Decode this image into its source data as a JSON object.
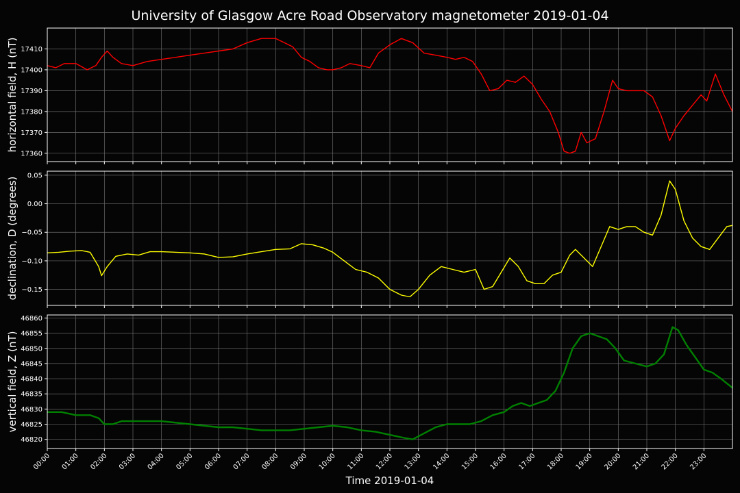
{
  "figure": {
    "title": "University of Glasgow Acre Road Observatory magnetometer 2019-01-04",
    "xlabel": "Time 2019-01-04",
    "background": "#050505",
    "grid_color": "#6b6b6b"
  },
  "chart_data": [
    {
      "type": "line",
      "ylabel": "horizontal field, H (nT)",
      "ylim": [
        17356,
        17420
      ],
      "yticks": [
        "17360",
        "17370",
        "17380",
        "17390",
        "17400",
        "17410"
      ],
      "xlim": [
        0,
        24
      ],
      "xticks": [
        "00:00",
        "01:00",
        "02:00",
        "03:00",
        "04:00",
        "05:00",
        "06:00",
        "07:00",
        "08:00",
        "09:00",
        "10:00",
        "11:00",
        "12:00",
        "13:00",
        "14:00",
        "15:00",
        "16:00",
        "17:00",
        "18:00",
        "19:00",
        "20:00",
        "21:00",
        "22:00",
        "23:00"
      ],
      "grid": true,
      "series": [
        {
          "color": "#ff0000",
          "x": [
            0,
            0.3,
            0.6,
            1.0,
            1.4,
            1.7,
            1.9,
            2.1,
            2.3,
            2.6,
            3.0,
            3.5,
            4.0,
            4.5,
            5.0,
            5.5,
            6.0,
            6.5,
            7.0,
            7.5,
            8.0,
            8.3,
            8.6,
            8.9,
            9.2,
            9.5,
            9.8,
            10.0,
            10.3,
            10.6,
            11.0,
            11.3,
            11.6,
            12.0,
            12.4,
            12.6,
            12.8,
            13.2,
            13.6,
            14.0,
            14.3,
            14.6,
            14.9,
            15.2,
            15.5,
            15.8,
            16.1,
            16.4,
            16.7,
            17.0,
            17.3,
            17.6,
            17.9,
            18.1,
            18.3,
            18.5,
            18.7,
            18.9,
            19.2,
            19.5,
            19.8,
            20.0,
            20.3,
            20.6,
            20.9,
            21.2,
            21.5,
            21.8,
            22.0,
            22.3,
            22.6,
            22.9,
            23.1,
            23.4,
            23.7,
            24.0
          ],
          "y": [
            17402,
            17401,
            17403,
            17403,
            17400,
            17402,
            17406,
            17409,
            17406,
            17403,
            17402,
            17404,
            17405,
            17406,
            17407,
            17408,
            17409,
            17410,
            17413,
            17415,
            17415,
            17413,
            17411,
            17406,
            17404,
            17401,
            17400,
            17400,
            17401,
            17403,
            17402,
            17401,
            17408,
            17412,
            17415,
            17414,
            17413,
            17408,
            17407,
            17406,
            17405,
            17406,
            17404,
            17398,
            17390,
            17391,
            17395,
            17394,
            17397,
            17393,
            17386,
            17380,
            17370,
            17361,
            17360,
            17361,
            17370,
            17365,
            17367,
            17380,
            17395,
            17391,
            17390,
            17390,
            17390,
            17387,
            17378,
            17366,
            17372,
            17378,
            17383,
            17388,
            17385,
            17398,
            17388,
            17380
          ]
        }
      ]
    },
    {
      "type": "line",
      "ylabel": "declination, D (degrees)",
      "ylim": [
        -0.178,
        0.057
      ],
      "yticks": [
        "0.05",
        "0.00",
        "−0.05",
        "−0.10",
        "−0.15"
      ],
      "xlim": [
        0,
        24
      ],
      "grid": true,
      "series": [
        {
          "color": "#ffff00",
          "x": [
            0,
            0.4,
            0.8,
            1.2,
            1.5,
            1.8,
            1.9,
            2.1,
            2.4,
            2.8,
            3.2,
            3.6,
            4.0,
            4.5,
            5.0,
            5.5,
            6.0,
            6.5,
            7.0,
            7.5,
            8.0,
            8.5,
            8.9,
            9.3,
            9.7,
            10.0,
            10.4,
            10.8,
            11.2,
            11.6,
            12.0,
            12.4,
            12.7,
            13.0,
            13.4,
            13.8,
            14.2,
            14.6,
            15.0,
            15.3,
            15.6,
            15.9,
            16.2,
            16.5,
            16.8,
            17.1,
            17.4,
            17.7,
            18.0,
            18.3,
            18.5,
            18.7,
            18.9,
            19.1,
            19.4,
            19.7,
            20.0,
            20.3,
            20.6,
            20.9,
            21.2,
            21.5,
            21.8,
            22.0,
            22.3,
            22.6,
            22.9,
            23.2,
            23.5,
            23.8,
            24.0
          ],
          "y": [
            -0.086,
            -0.085,
            -0.083,
            -0.082,
            -0.085,
            -0.11,
            -0.126,
            -0.11,
            -0.092,
            -0.088,
            -0.09,
            -0.084,
            -0.084,
            -0.085,
            -0.086,
            -0.088,
            -0.094,
            -0.093,
            -0.088,
            -0.084,
            -0.08,
            -0.079,
            -0.07,
            -0.072,
            -0.078,
            -0.085,
            -0.1,
            -0.115,
            -0.12,
            -0.13,
            -0.15,
            -0.16,
            -0.163,
            -0.15,
            -0.125,
            -0.11,
            -0.115,
            -0.12,
            -0.115,
            -0.15,
            -0.145,
            -0.12,
            -0.095,
            -0.11,
            -0.135,
            -0.14,
            -0.14,
            -0.125,
            -0.12,
            -0.09,
            -0.08,
            -0.09,
            -0.1,
            -0.11,
            -0.075,
            -0.04,
            -0.045,
            -0.04,
            -0.04,
            -0.05,
            -0.055,
            -0.02,
            0.04,
            0.025,
            -0.03,
            -0.06,
            -0.075,
            -0.08,
            -0.06,
            -0.04,
            -0.038
          ]
        }
      ]
    },
    {
      "type": "line",
      "ylabel": "vertical field, Z (nT)",
      "ylim": [
        46817,
        46861
      ],
      "yticks": [
        "46820",
        "46825",
        "46830",
        "46835",
        "46840",
        "46845",
        "46850",
        "46855",
        "46860"
      ],
      "xlim": [
        0,
        24
      ],
      "grid": true,
      "series": [
        {
          "color": "#008000",
          "x": [
            0,
            0.5,
            1.0,
            1.5,
            1.8,
            2.0,
            2.3,
            2.6,
            3.0,
            3.5,
            4.0,
            4.5,
            5.0,
            5.5,
            6.0,
            6.5,
            7.0,
            7.5,
            8.0,
            8.5,
            9.0,
            9.5,
            10.0,
            10.5,
            11.0,
            11.5,
            12.0,
            12.5,
            12.8,
            13.2,
            13.6,
            14.0,
            14.4,
            14.8,
            15.2,
            15.6,
            16.0,
            16.3,
            16.6,
            16.9,
            17.2,
            17.5,
            17.8,
            18.1,
            18.4,
            18.7,
            19.0,
            19.3,
            19.6,
            19.9,
            20.2,
            20.6,
            21.0,
            21.3,
            21.6,
            21.9,
            22.1,
            22.4,
            22.7,
            23.0,
            23.3,
            23.6,
            24.0
          ],
          "y": [
            46829,
            46829,
            46828,
            46828,
            46827,
            46825,
            46825,
            46826,
            46826,
            46826,
            46826,
            46825.5,
            46825,
            46824.5,
            46824,
            46824,
            46823.5,
            46823,
            46823,
            46823,
            46823.5,
            46824,
            46824.5,
            46824,
            46823,
            46822.5,
            46821.5,
            46820.5,
            46820,
            46822,
            46824,
            46825,
            46825,
            46825,
            46826,
            46828,
            46829,
            46831,
            46832,
            46831,
            46832,
            46833,
            46836,
            46842,
            46850,
            46854,
            46855,
            46854,
            46853,
            46850,
            46846,
            46845,
            46844,
            46845,
            46848,
            46857,
            46856,
            46851,
            46847,
            46843,
            46842,
            46840,
            46837
          ]
        }
      ]
    }
  ]
}
